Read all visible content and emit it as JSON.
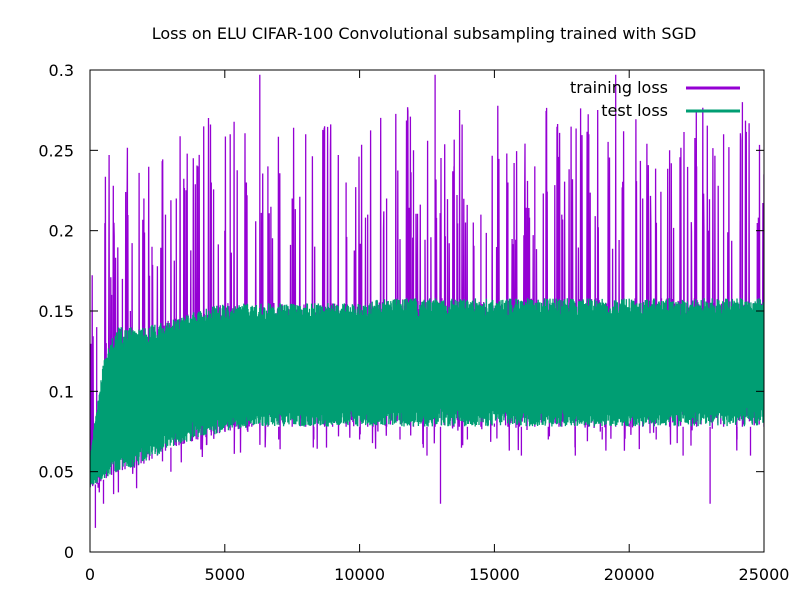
{
  "chart_data": {
    "type": "line",
    "title": "Loss on ELU CIFAR-100 Convolutional subsampling trained with SGD",
    "xlabel": "",
    "ylabel": "",
    "xlim": [
      0,
      25000
    ],
    "ylim": [
      0,
      0.3
    ],
    "x_ticks": [
      0,
      5000,
      10000,
      15000,
      20000,
      25000
    ],
    "x_tick_labels": [
      "0",
      "5000",
      "10000",
      "15000",
      "20000",
      "25000"
    ],
    "y_ticks": [
      0,
      0.05,
      0.1,
      0.15,
      0.2,
      0.25,
      0.3
    ],
    "y_tick_labels": [
      "0",
      "0.05",
      "0.1",
      "0.15",
      "0.2",
      "0.25",
      "0.3"
    ],
    "grid": false,
    "legend_position": "top-right",
    "series": [
      {
        "name": "training loss",
        "color": "#9400d3",
        "x": [
          0,
          100,
          200,
          250,
          300,
          400,
          500,
          600,
          800,
          1000,
          1200,
          1300,
          1500,
          1800,
          2000,
          2200,
          2300,
          2500,
          2800,
          3000,
          3200,
          3300,
          3500,
          3800,
          4000,
          4300,
          4500,
          4800,
          5000,
          5200,
          5500,
          5800,
          6000,
          6300,
          6500,
          6600,
          7000,
          7500,
          8000,
          8300,
          8700,
          9000,
          9500,
          10000,
          10300,
          10500,
          11000,
          11500,
          12000,
          12500,
          12800,
          13000,
          13500,
          14000,
          14500,
          15000,
          15500,
          16000,
          16500,
          17000,
          17500,
          18000,
          18500,
          19000,
          19500,
          20000,
          20500,
          21000,
          21500,
          22000,
          22500,
          23000,
          23500,
          24000,
          24200,
          24500,
          25000
        ],
        "y": [
          0.05,
          0.06,
          0.015,
          0.14,
          0.04,
          0.09,
          0.03,
          0.13,
          0.16,
          0.06,
          0.17,
          0.07,
          0.15,
          0.06,
          0.22,
          0.07,
          0.19,
          0.08,
          0.21,
          0.05,
          0.22,
          0.08,
          0.2,
          0.09,
          0.24,
          0.08,
          0.23,
          0.08,
          0.2,
          0.26,
          0.09,
          0.23,
          0.08,
          0.297,
          0.08,
          0.24,
          0.07,
          0.22,
          0.26,
          0.07,
          0.265,
          0.08,
          0.23,
          0.07,
          0.21,
          0.08,
          0.22,
          0.07,
          0.25,
          0.06,
          0.297,
          0.03,
          0.24,
          0.07,
          0.21,
          0.08,
          0.23,
          0.06,
          0.24,
          0.07,
          0.21,
          0.06,
          0.26,
          0.07,
          0.297,
          0.08,
          0.22,
          0.07,
          0.25,
          0.06,
          0.24,
          0.03,
          0.26,
          0.07,
          0.28,
          0.06,
          0.235
        ]
      },
      {
        "name": "test loss",
        "color": "#009e73",
        "x": [
          0,
          500,
          1000,
          2000,
          3000,
          4000,
          5000,
          6000,
          7000,
          8000,
          9000,
          10000,
          11000,
          12000,
          13000,
          15000,
          17000,
          20000,
          22000,
          25000
        ],
        "upper": [
          0.06,
          0.12,
          0.14,
          0.14,
          0.145,
          0.15,
          0.155,
          0.155,
          0.155,
          0.155,
          0.155,
          0.155,
          0.158,
          0.158,
          0.158,
          0.158,
          0.158,
          0.158,
          0.158,
          0.158
        ],
        "lower": [
          0.04,
          0.045,
          0.05,
          0.055,
          0.065,
          0.07,
          0.075,
          0.078,
          0.078,
          0.078,
          0.078,
          0.078,
          0.078,
          0.078,
          0.078,
          0.078,
          0.078,
          0.078,
          0.078,
          0.078
        ]
      }
    ]
  }
}
